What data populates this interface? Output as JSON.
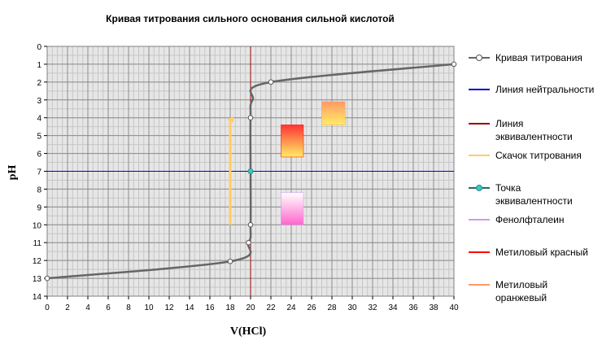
{
  "chart_data": {
    "type": "line",
    "title": "Кривая титрования сильного основания сильной кислотой",
    "xlabel": "V(HCl)",
    "ylabel": "pH",
    "xlim": [
      0,
      40
    ],
    "ylim": [
      0,
      14
    ],
    "y_inverted": true,
    "x_ticks": [
      0,
      2,
      4,
      6,
      8,
      10,
      12,
      14,
      16,
      18,
      20,
      22,
      24,
      26,
      28,
      30,
      32,
      34,
      36,
      38,
      40
    ],
    "y_ticks": [
      0,
      1,
      2,
      3,
      4,
      5,
      6,
      7,
      8,
      9,
      10,
      11,
      12,
      13,
      14
    ],
    "grid": true,
    "legend_position": "right",
    "series": [
      {
        "name": "Кривая титрования",
        "color": "#666666",
        "kind": "line-markers",
        "points": [
          [
            0,
            13
          ],
          [
            18,
            12.05
          ],
          [
            19.8,
            11
          ],
          [
            20,
            10
          ],
          [
            20,
            7
          ],
          [
            20,
            4
          ],
          [
            20.2,
            3
          ],
          [
            22,
            2
          ],
          [
            40,
            1
          ]
        ],
        "markers": [
          [
            0,
            13
          ],
          [
            18,
            12.05
          ],
          [
            19.8,
            11
          ],
          [
            20,
            10
          ],
          [
            20,
            4
          ],
          [
            22,
            2
          ],
          [
            40,
            1
          ]
        ]
      },
      {
        "name": "Линия нейтральности",
        "color": "#0000cc",
        "kind": "line",
        "points": [
          [
            0,
            7
          ],
          [
            40,
            7
          ]
        ]
      },
      {
        "name": "Линия эквивалентности",
        "color": "#990000",
        "kind": "line",
        "points": [
          [
            20,
            0
          ],
          [
            20,
            14
          ]
        ]
      },
      {
        "name": "Скачок титрования",
        "color": "#ffcc66",
        "kind": "arrow",
        "points": [
          [
            18,
            10
          ],
          [
            18,
            4
          ]
        ]
      },
      {
        "name": "Точка эквивалентности",
        "color": "#33cccc",
        "kind": "marker",
        "points": [
          [
            20,
            7
          ]
        ]
      },
      {
        "name": "Фенолфталеин",
        "color": "#cc99ff",
        "kind": "range",
        "x_range": [
          23,
          25.2
        ],
        "y_range": [
          8.2,
          10
        ],
        "gradient": [
          "#ffffff",
          "#ff66cc"
        ]
      },
      {
        "name": "Метиловый красный",
        "color": "#ff0000",
        "kind": "range",
        "x_range": [
          23,
          25.2
        ],
        "y_range": [
          4.4,
          6.2
        ],
        "gradient": [
          "#ff3333",
          "#ffee66"
        ]
      },
      {
        "name": "Метиловый оранжевый",
        "color": "#ff9966",
        "kind": "range",
        "x_range": [
          27,
          29.3
        ],
        "y_range": [
          3.1,
          4.4
        ],
        "gradient": [
          "#ff9966",
          "#ffee66"
        ]
      }
    ]
  }
}
